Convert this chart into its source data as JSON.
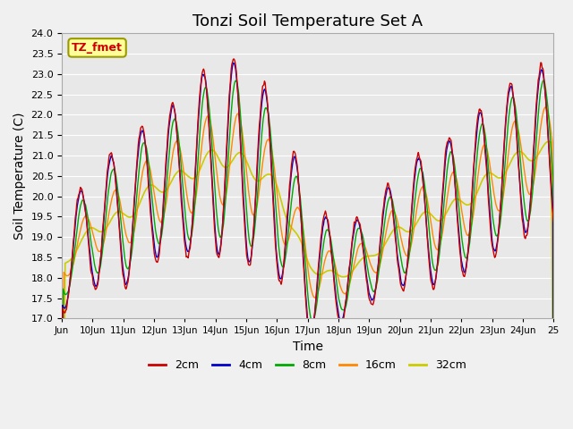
{
  "title": "Tonzi Soil Temperature Set A",
  "xlabel": "Time",
  "ylabel": "Soil Temperature (C)",
  "ylim": [
    17.0,
    24.0
  ],
  "yticks": [
    17.0,
    17.5,
    18.0,
    18.5,
    19.0,
    19.5,
    20.0,
    20.5,
    21.0,
    21.5,
    22.0,
    22.5,
    23.0,
    23.5,
    24.0
  ],
  "xtick_labels": [
    "Jun",
    "10Jun",
    "11Jun",
    "12Jun",
    "13Jun",
    "14Jun",
    "15Jun",
    "16Jun",
    "17Jun",
    "18Jun",
    "19Jun",
    "20Jun",
    "21Jun",
    "22Jun",
    "23Jun",
    "24Jun",
    "25"
  ],
  "colors": {
    "2cm": "#cc0000",
    "4cm": "#0000cc",
    "8cm": "#00aa00",
    "16cm": "#ff8800",
    "32cm": "#cccc00"
  },
  "legend_labels": [
    "2cm",
    "4cm",
    "8cm",
    "16cm",
    "32cm"
  ],
  "annotation_text": "TZ_fmet",
  "annotation_color": "#cc0000",
  "annotation_bg": "#ffff99",
  "annotation_border": "#999900",
  "background_color": "#e8e8e8",
  "grid_color": "#ffffff",
  "title_fontsize": 13,
  "label_fontsize": 10
}
